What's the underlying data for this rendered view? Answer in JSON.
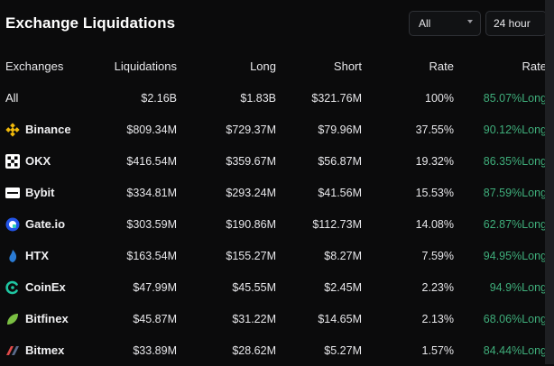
{
  "title": "Exchange Liquidations",
  "filters": {
    "exchange": "All",
    "timeframe": "24 hour"
  },
  "columns": [
    "Exchanges",
    "Liquidations",
    "Long",
    "Short",
    "Rate",
    "Rate"
  ],
  "rows": [
    {
      "name": "All",
      "liquidations": "$2.16B",
      "long": "$1.83B",
      "short": "$321.76M",
      "rate": "100%",
      "long_rate": "85.07%Long",
      "icon": ""
    },
    {
      "name": "Binance",
      "liquidations": "$809.34M",
      "long": "$729.37M",
      "short": "$79.96M",
      "rate": "37.55%",
      "long_rate": "90.12%Long",
      "icon": "binance-logo"
    },
    {
      "name": "OKX",
      "liquidations": "$416.54M",
      "long": "$359.67M",
      "short": "$56.87M",
      "rate": "19.32%",
      "long_rate": "86.35%Long",
      "icon": "okx-logo"
    },
    {
      "name": "Bybit",
      "liquidations": "$334.81M",
      "long": "$293.24M",
      "short": "$41.56M",
      "rate": "15.53%",
      "long_rate": "87.59%Long",
      "icon": "bybit-logo"
    },
    {
      "name": "Gate.io",
      "liquidations": "$303.59M",
      "long": "$190.86M",
      "short": "$112.73M",
      "rate": "14.08%",
      "long_rate": "62.87%Long",
      "icon": "gateio-logo"
    },
    {
      "name": "HTX",
      "liquidations": "$163.54M",
      "long": "$155.27M",
      "short": "$8.27M",
      "rate": "7.59%",
      "long_rate": "94.95%Long",
      "icon": "htx-logo"
    },
    {
      "name": "CoinEx",
      "liquidations": "$47.99M",
      "long": "$45.55M",
      "short": "$2.45M",
      "rate": "2.23%",
      "long_rate": "94.9%Long",
      "icon": "coinex-logo"
    },
    {
      "name": "Bitfinex",
      "liquidations": "$45.87M",
      "long": "$31.22M",
      "short": "$14.65M",
      "rate": "2.13%",
      "long_rate": "68.06%Long",
      "icon": "bitfinex-logo"
    },
    {
      "name": "Bitmex",
      "liquidations": "$33.89M",
      "long": "$28.62M",
      "short": "$5.27M",
      "rate": "1.57%",
      "long_rate": "84.44%Long",
      "icon": "bitmex-logo"
    }
  ],
  "colors": {
    "long_rate": "#3fae7b",
    "background": "#0b0b0c",
    "binance": "#f0b90b",
    "gateio": "#2354e6",
    "htx": "#2a7bd4",
    "coinex": "#1fc6a2",
    "bitfinex": "#7bc043",
    "bitmex": "#e04a4a"
  }
}
